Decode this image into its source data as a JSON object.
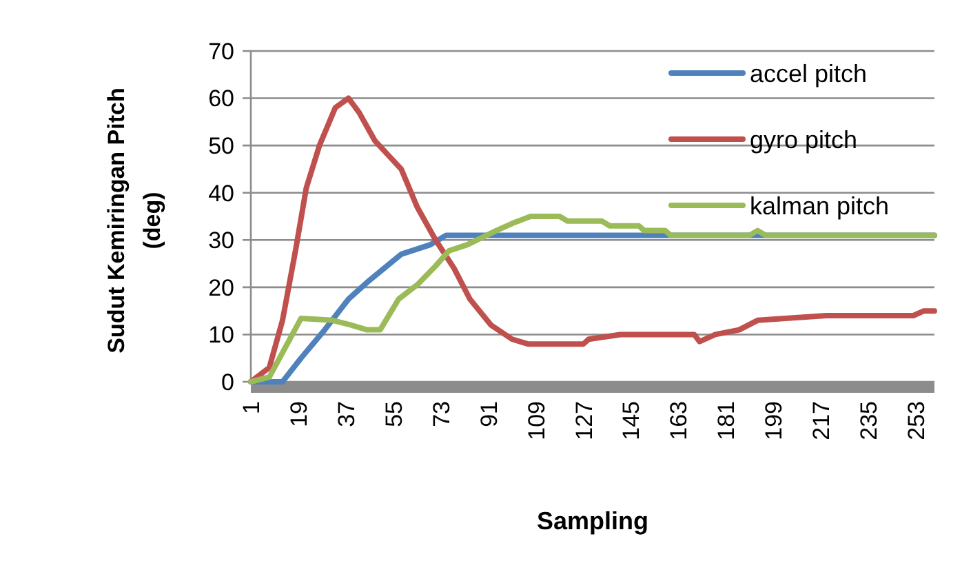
{
  "chart_data": {
    "type": "line",
    "xlabel": "Sampling",
    "ylabel": "Sudut Kemiringan Pitch (deg)",
    "xlim": [
      1,
      260
    ],
    "xticks": [
      1,
      19,
      37,
      55,
      73,
      91,
      109,
      127,
      145,
      163,
      181,
      199,
      217,
      235,
      253
    ],
    "ylim": [
      0,
      70
    ],
    "yticks": [
      0,
      10,
      20,
      30,
      40,
      50,
      60,
      70
    ],
    "grid": "y",
    "legend": "top right",
    "marker": "none",
    "line_style": "solid",
    "series": [
      {
        "name": "accel pitch",
        "color": "#4f81bd",
        "x": [
          1,
          13,
          20,
          29,
          38,
          46,
          58,
          69,
          75,
          100,
          150,
          200,
          260
        ],
        "values": [
          0,
          0,
          5,
          11,
          17.5,
          21.5,
          27,
          29,
          31,
          31,
          31,
          31,
          31
        ]
      },
      {
        "name": "gyro pitch",
        "color": "#c0504d",
        "x": [
          1,
          8,
          13,
          18,
          22,
          27,
          33,
          38,
          42,
          48,
          53,
          58,
          64,
          71,
          78,
          84,
          92,
          100,
          106,
          127,
          129,
          141,
          169,
          171,
          177,
          186,
          193,
          219,
          252,
          256,
          260
        ],
        "values": [
          0,
          3,
          13,
          28,
          41,
          50,
          58,
          60,
          57,
          51,
          48,
          45,
          37,
          30,
          24,
          17.5,
          12,
          9,
          8,
          8,
          9,
          10,
          10,
          8.5,
          10,
          11,
          13,
          14,
          14,
          15,
          15
        ]
      },
      {
        "name": "kalman pitch",
        "color": "#9bbb59",
        "x": [
          1,
          8,
          20,
          32,
          39,
          45,
          50,
          57,
          64,
          71,
          76,
          83,
          94,
          100,
          107,
          118,
          121,
          134,
          137,
          148,
          150,
          158,
          160,
          190,
          193,
          196,
          260
        ],
        "values": [
          0,
          1,
          13.4,
          13,
          12,
          11,
          11,
          17.5,
          20.5,
          24.5,
          27.7,
          29,
          32,
          33.5,
          35,
          35,
          34,
          34,
          33,
          33,
          32,
          32,
          31,
          31,
          32,
          31,
          31
        ]
      }
    ]
  }
}
